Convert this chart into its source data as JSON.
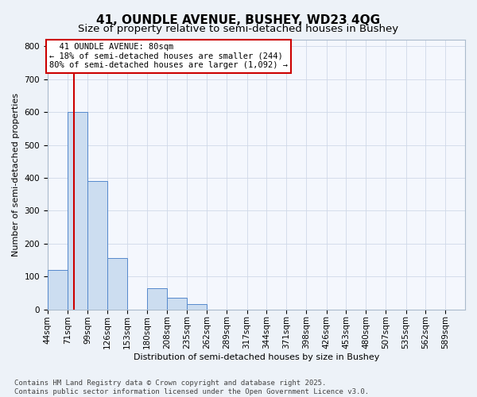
{
  "title": "41, OUNDLE AVENUE, BUSHEY, WD23 4QG",
  "subtitle": "Size of property relative to semi-detached houses in Bushey",
  "xlabel": "Distribution of semi-detached houses by size in Bushey",
  "ylabel": "Number of semi-detached properties",
  "bin_edges": [
    44,
    71,
    99,
    126,
    153,
    180,
    208,
    235,
    262,
    289,
    317,
    344,
    371,
    398,
    426,
    453,
    480,
    507,
    535,
    562,
    589
  ],
  "bar_heights": [
    120,
    600,
    390,
    155,
    0,
    65,
    35,
    15,
    0,
    0,
    0,
    0,
    0,
    0,
    0,
    0,
    0,
    0,
    0,
    0
  ],
  "bar_color": "#ccddf0",
  "bar_edge_color": "#5588cc",
  "property_size": 80,
  "red_line_color": "#cc0000",
  "annotation_text": "  41 OUNDLE AVENUE: 80sqm\n← 18% of semi-detached houses are smaller (244)\n80% of semi-detached houses are larger (1,092) →",
  "annotation_box_color": "#ffffff",
  "annotation_box_edge": "#cc0000",
  "ylim": [
    0,
    820
  ],
  "yticks": [
    0,
    100,
    200,
    300,
    400,
    500,
    600,
    700,
    800
  ],
  "grid_color": "#d0d8e8",
  "background_color": "#edf2f8",
  "plot_bg_color": "#f4f7fd",
  "footer_text": "Contains HM Land Registry data © Crown copyright and database right 2025.\nContains public sector information licensed under the Open Government Licence v3.0.",
  "title_fontsize": 11,
  "subtitle_fontsize": 9.5,
  "axis_label_fontsize": 8,
  "tick_fontsize": 7.5,
  "annotation_fontsize": 7.5,
  "footer_fontsize": 6.5
}
